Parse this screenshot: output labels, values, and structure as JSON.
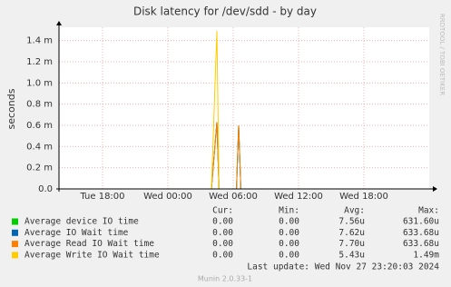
{
  "chart_data": {
    "type": "line",
    "title": "Disk latency for /dev/sdd - by day",
    "y_label": "seconds",
    "side_label": "RRDTOOL / TOBI OETIKER",
    "x": [
      28.0,
      28.5,
      28.7,
      29.0,
      30.3,
      30.5,
      30.7
    ],
    "xlim": [
      14,
      48
    ],
    "xticks": [
      {
        "value": 18,
        "label": "Tue 18:00"
      },
      {
        "value": 24,
        "label": "Wed 00:00"
      },
      {
        "value": 30,
        "label": "Wed 06:00"
      },
      {
        "value": 36,
        "label": "Wed 12:00"
      },
      {
        "value": 42,
        "label": "Wed 18:00"
      }
    ],
    "ylim": [
      0,
      0.0015
    ],
    "yticks": [
      {
        "value": 0,
        "label": "0.0"
      },
      {
        "value": 0.0002,
        "label": "0.2 m"
      },
      {
        "value": 0.0004,
        "label": "0.4 m"
      },
      {
        "value": 0.0006,
        "label": "0.6 m"
      },
      {
        "value": 0.0008,
        "label": "0.8 m"
      },
      {
        "value": 0.001,
        "label": "1.0 m"
      },
      {
        "value": 0.0012,
        "label": "1.2 m"
      },
      {
        "value": 0.0014,
        "label": "1.4 m"
      }
    ],
    "grid": true,
    "columns": [
      "Cur:",
      "Min:",
      "Avg:",
      "Max:"
    ],
    "series": [
      {
        "name": "Average device IO time",
        "color": "#00cc00",
        "values": [
          0,
          0.00063,
          0,
          0,
          0,
          0.0006,
          0
        ],
        "stats": [
          "0.00",
          "0.00",
          "7.56u",
          "631.60u"
        ]
      },
      {
        "name": "Average IO Wait time",
        "color": "#0066b3",
        "values": [
          0,
          0.00063,
          0,
          0,
          0,
          0.0006,
          0
        ],
        "stats": [
          "0.00",
          "0.00",
          "7.62u",
          "633.68u"
        ]
      },
      {
        "name": "Average Read IO Wait time",
        "color": "#ff8000",
        "values": [
          0,
          0.00063,
          0,
          0,
          0,
          0.0006,
          0
        ],
        "stats": [
          "0.00",
          "0.00",
          "7.70u",
          "633.68u"
        ]
      },
      {
        "name": "Average Write IO Wait time",
        "color": "#ffcc00",
        "values": [
          0,
          0.00149,
          0,
          0,
          0,
          0,
          0
        ],
        "stats": [
          "0.00",
          "0.00",
          "5.43u",
          "1.49m"
        ]
      }
    ],
    "last_update": "Last update:  Wed Nov 27 23:20:03 2024",
    "footer": "Munin 2.0.33-1"
  }
}
